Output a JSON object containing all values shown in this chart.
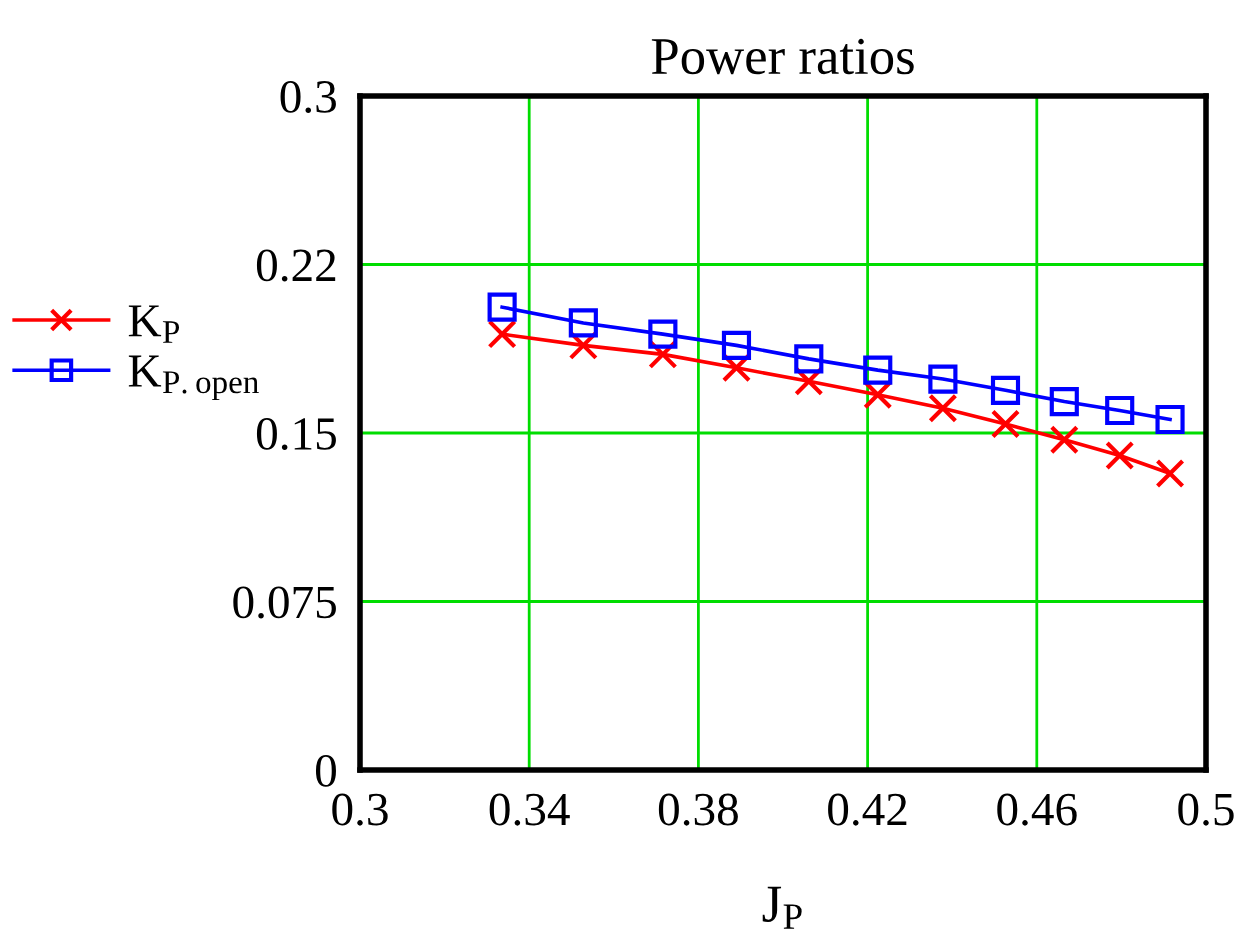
{
  "chart_data": {
    "type": "line",
    "title": "Power ratios",
    "xlabel": "J$_{P}$",
    "x": [
      0.3336,
      0.3528,
      0.3716,
      0.389,
      0.4061,
      0.4224,
      0.4378,
      0.4526,
      0.4665,
      0.4796,
      0.4915
    ],
    "series": [
      {
        "name": "K$_{P}$",
        "color": "#ff0000",
        "marker": "cross",
        "values": [
          0.194,
          0.189,
          0.185,
          0.179,
          0.173,
          0.167,
          0.161,
          0.154,
          0.147,
          0.14,
          0.132
        ]
      },
      {
        "name": "K$_{P.open}$",
        "color": "#0000ff",
        "marker": "square",
        "values": [
          0.206,
          0.199,
          0.194,
          0.189,
          0.183,
          0.178,
          0.174,
          0.169,
          0.164,
          0.16,
          0.156
        ]
      }
    ],
    "xlim": [
      0.3,
      0.5
    ],
    "xticks": [
      0.3,
      0.34,
      0.38,
      0.42,
      0.46,
      0.5
    ],
    "ylim": [
      0,
      0.3
    ],
    "yticks": [
      0,
      0.075,
      0.15,
      {
        "value": 0.225,
        "label": "0.22"
      },
      0.3
    ],
    "grid": true,
    "legend": "left",
    "line_style": "solid"
  }
}
